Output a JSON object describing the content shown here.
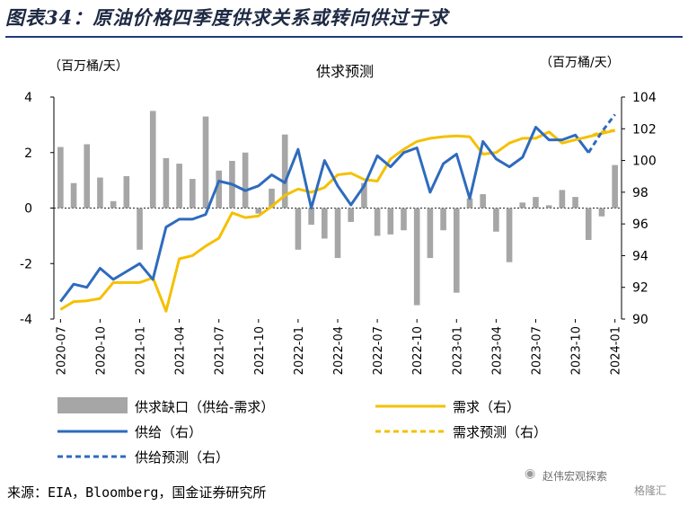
{
  "header": {
    "title": "图表34：原油价格四季度供求关系或转向供过于求"
  },
  "footer": {
    "source": "来源：EIA，Bloomberg，国金证券研究所"
  },
  "watermark": {
    "text": "赵伟宏观探索",
    "text2": "格隆汇",
    "icon": "wechat-icon"
  },
  "chart_data": {
    "type": "bar+line",
    "title": "供求预测",
    "left_unit": "（百万桶/天）",
    "right_unit": "（百万桶/天）",
    "left_axis": {
      "min": -4,
      "max": 4,
      "ticks": [
        "4",
        "2",
        "0",
        "-2",
        "-4"
      ]
    },
    "right_axis": {
      "min": 90,
      "max": 104,
      "ticks": [
        "104",
        "102",
        "100",
        "98",
        "96",
        "94",
        "92",
        "90"
      ]
    },
    "x_tick_labels": [
      "2020-07",
      "2020-10",
      "2021-01",
      "2021-04",
      "2021-07",
      "2021-10",
      "2022-01",
      "2022-04",
      "2022-07",
      "2022-10",
      "2023-01",
      "2023-04",
      "2023-07",
      "2023-10",
      "2024-01"
    ],
    "legend": [
      {
        "label": "供求缺口（供给-需求）",
        "style": "bar",
        "color": "#a6a6a6"
      },
      {
        "label": "需求（右）",
        "style": "solid",
        "color": "#f5c000"
      },
      {
        "label": "供给（右）",
        "style": "solid",
        "color": "#2e6bbd"
      },
      {
        "label": "需求预测（右）",
        "style": "dashed",
        "color": "#f5c000"
      },
      {
        "label": "供给预测（右）",
        "style": "dashed",
        "color": "#2e6bbd"
      }
    ],
    "months": [
      "2020-07",
      "2020-08",
      "2020-09",
      "2020-10",
      "2020-11",
      "2020-12",
      "2021-01",
      "2021-02",
      "2021-03",
      "2021-04",
      "2021-05",
      "2021-06",
      "2021-07",
      "2021-08",
      "2021-09",
      "2021-10",
      "2021-11",
      "2021-12",
      "2022-01",
      "2022-02",
      "2022-03",
      "2022-04",
      "2022-05",
      "2022-06",
      "2022-07",
      "2022-08",
      "2022-09",
      "2022-10",
      "2022-11",
      "2022-12",
      "2023-01",
      "2023-02",
      "2023-03",
      "2023-04",
      "2023-05",
      "2023-06",
      "2023-07",
      "2023-08",
      "2023-09",
      "2023-10",
      "2023-11",
      "2023-12",
      "2024-01"
    ],
    "gap": [
      2.2,
      0.9,
      2.3,
      1.1,
      0.25,
      1.15,
      -1.5,
      3.5,
      1.8,
      1.6,
      1.05,
      3.3,
      1.35,
      1.7,
      2.0,
      -0.2,
      0.7,
      2.65,
      -1.5,
      -0.6,
      -1.1,
      -1.8,
      -0.5,
      0.9,
      -1.0,
      -0.95,
      -0.8,
      -3.5,
      -1.8,
      -0.8,
      -3.05,
      0.35,
      0.5,
      -0.85,
      -1.95,
      0.2,
      0.4,
      0.1,
      0.65,
      0.4,
      -1.15,
      -0.3,
      1.55
    ],
    "demand": [
      90.6,
      91.1,
      91.15,
      91.3,
      92.3,
      92.3,
      92.3,
      92.6,
      90.5,
      93.8,
      94.0,
      94.6,
      95.1,
      96.7,
      96.4,
      96.5,
      97.1,
      97.8,
      98.2,
      98.0,
      98.3,
      99.1,
      99.2,
      98.8,
      98.7,
      100.1,
      100.7,
      101.2,
      101.4,
      101.5,
      101.55,
      101.5,
      100.4,
      100.5,
      101.1,
      101.4,
      101.4,
      101.8,
      101.1,
      101.3,
      101.5,
      101.7,
      101.9
    ],
    "supply": [
      91.1,
      92.2,
      92.0,
      93.2,
      92.5,
      93.0,
      93.5,
      92.5,
      95.8,
      96.3,
      96.3,
      96.6,
      98.7,
      98.5,
      98.1,
      98.4,
      99.1,
      98.6,
      100.7,
      97.0,
      100.0,
      98.4,
      97.2,
      98.4,
      100.3,
      99.6,
      100.5,
      100.8,
      98.0,
      99.8,
      100.4,
      97.6,
      101.2,
      100.1,
      99.6,
      100.2,
      102.1,
      101.3,
      101.3,
      101.6,
      100.5
    ],
    "demand_forecast": {
      "start_month": "2023-10",
      "values": [
        101.3,
        101.5,
        101.8,
        101.9
      ]
    },
    "supply_forecast": {
      "start_month": "2023-11",
      "values": [
        100.5,
        101.8,
        102.9
      ]
    }
  }
}
